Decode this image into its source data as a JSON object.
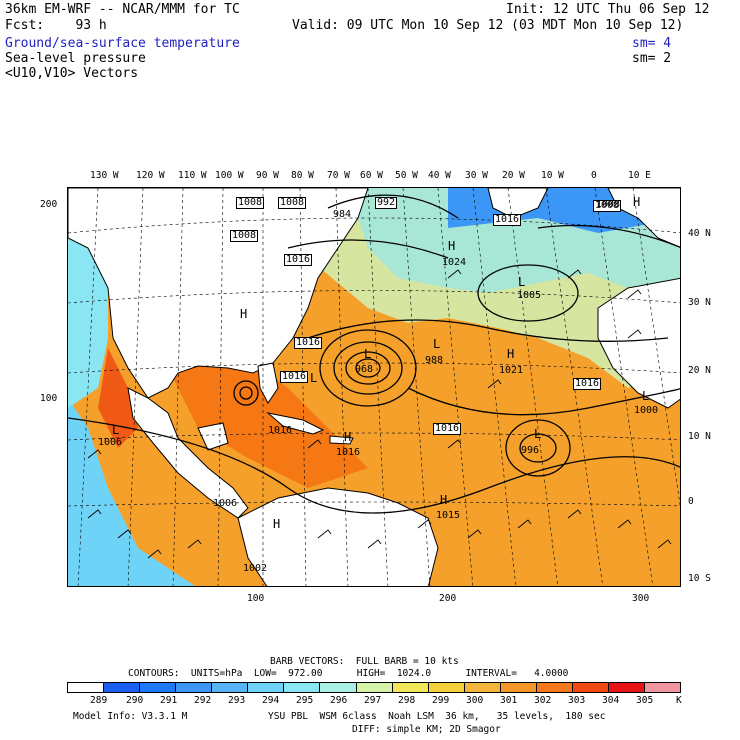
{
  "header": {
    "line1_left": "36km EM-WRF -- NCAR/MMM for TC",
    "line1_right": "Init: 12 UTC Thu 06 Sep 12",
    "line2_left": "Fcst:    93 h",
    "line2_right": "Valid: 09 UTC Mon 10 Sep 12 (03 MDT Mon 10 Sep 12)",
    "field1": "Ground/sea-surface temperature",
    "field1_sm": "sm= 4",
    "field2": "Sea-level pressure",
    "field2_sm": "sm= 2",
    "field3": "<U10,V10> Vectors"
  },
  "top_lon_labels": [
    "130 W",
    "120 W",
    "110 W",
    "100 W",
    "90 W",
    "80 W",
    "70 W",
    "60 W",
    "50 W",
    "40 W",
    "30 W",
    "20 W",
    "10 W",
    "0",
    "10 E"
  ],
  "right_lat_labels": [
    "40 N",
    "30 N",
    "20 N",
    "10 N",
    "0",
    "10 S"
  ],
  "left_grid_labels": [
    "200",
    "100"
  ],
  "bottom_grid_labels": [
    "100",
    "200",
    "300"
  ],
  "pressure_labels": [
    {
      "text": "1008"
    },
    {
      "text": "1008"
    },
    {
      "text": "1008"
    },
    {
      "text": "992"
    },
    {
      "text": "1016"
    },
    {
      "text": "1016"
    },
    {
      "text": "1024"
    },
    {
      "text": "1005"
    },
    {
      "text": "1008"
    },
    {
      "text": "1016"
    },
    {
      "text": "1016"
    },
    {
      "text": "1021"
    },
    {
      "text": "1016"
    },
    {
      "text": "1016"
    },
    {
      "text": "1016"
    },
    {
      "text": "1016"
    },
    {
      "text": "1015"
    },
    {
      "text": "1006"
    },
    {
      "text": "1006"
    },
    {
      "text": "1002"
    },
    {
      "text": "968"
    },
    {
      "text": "988"
    },
    {
      "text": "996"
    },
    {
      "text": "1000"
    },
    {
      "text": "984"
    },
    {
      "text": "1008"
    }
  ],
  "hl_labels": [
    "L",
    "L",
    "L",
    "L",
    "L",
    "L",
    "L",
    "H",
    "H",
    "H",
    "H",
    "H",
    "H",
    "H"
  ],
  "footer": {
    "barb1": "BARB VECTORS:  FULL BARB = 10 kts",
    "contours": "CONTOURS:  UNITS=hPa  LOW=  972.00      HIGH=  1024.0      INTERVAL=   4.0000",
    "colorbar_ticks": [
      "289",
      "290",
      "291",
      "292",
      "293",
      "294",
      "295",
      "296",
      "297",
      "298",
      "299",
      "300",
      "301",
      "302",
      "303",
      "304",
      "305"
    ],
    "colorbar_unit": "K",
    "model_info": "Model Info: V3.3.1 M",
    "physics1": "YSU PBL  WSM 6class  Noah LSM  36 km,   35 levels,  180 sec",
    "physics2": "DIFF: simple KM; 2D Smagor"
  },
  "colorbar_colors": [
    "#ffffff",
    "#1a5ff0",
    "#1f78f5",
    "#3c96f5",
    "#58b4f7",
    "#6fd2f7",
    "#8ae6f2",
    "#a8f0e6",
    "#d6f2a6",
    "#f2e65a",
    "#f5d23c",
    "#f5b43c",
    "#f59628",
    "#f5781e",
    "#f04a14",
    "#e61414",
    "#f096a0"
  ],
  "colors": {
    "sst_warm": "#f5961e",
    "sst_warmer": "#f57814",
    "sst_cool": "#a8e6cf",
    "sst_cold": "#3c96f5",
    "land": "#ffffff",
    "contour": "#000000"
  }
}
